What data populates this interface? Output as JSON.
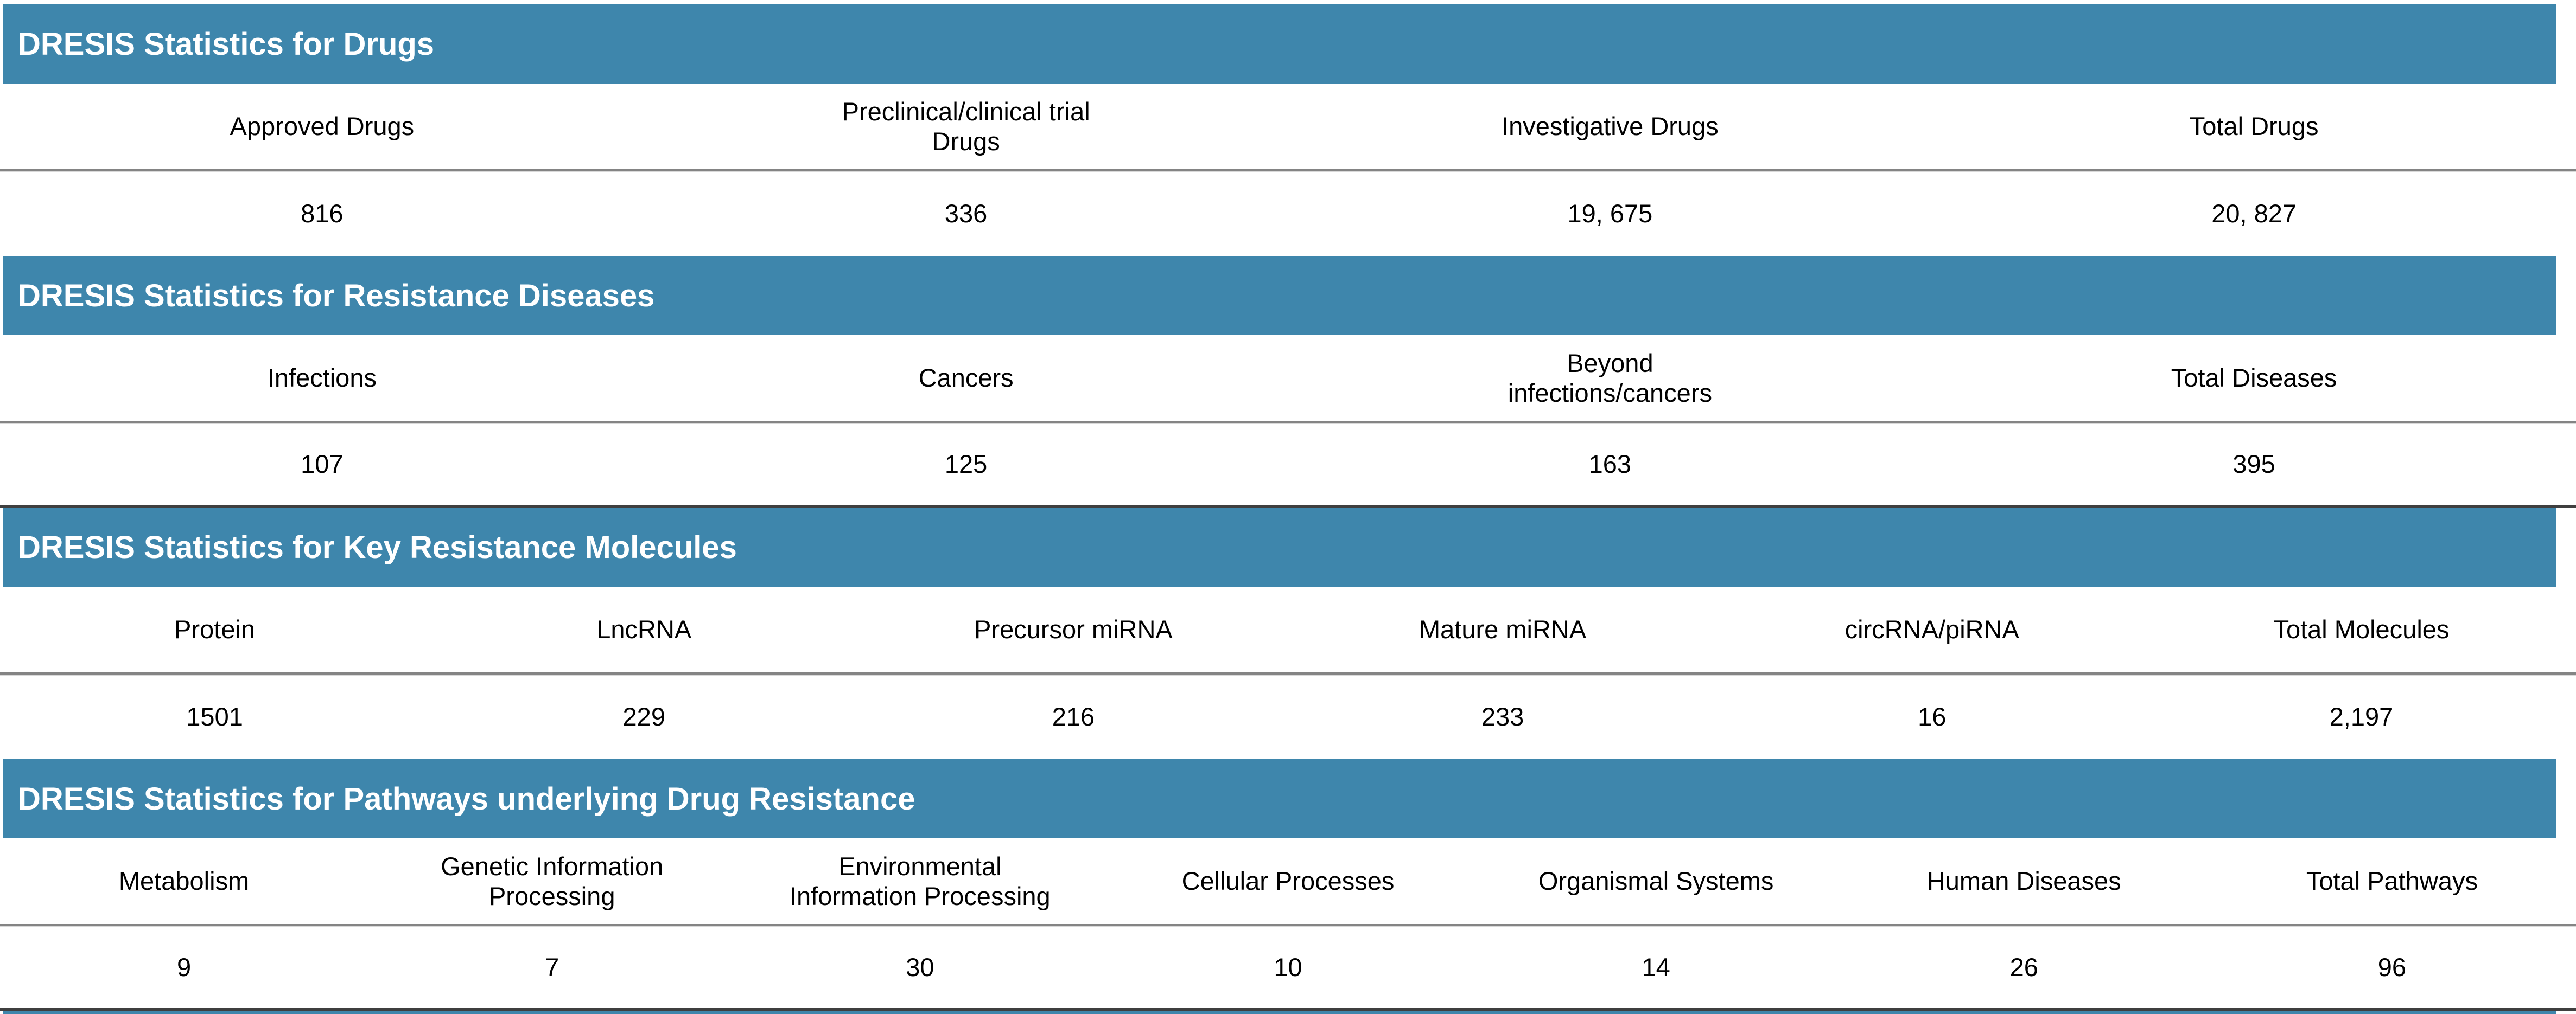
{
  "page_title": "DRESIS statistics tables",
  "theme": {
    "header_bar_color": "#3e86ac",
    "header_text_color": "#ffffff",
    "body_text_color": "#000000",
    "divider_color": "#848484",
    "strong_rule_color": "#3f3f3f"
  },
  "sections": [
    {
      "title": "DRESIS Statistics for Drugs",
      "columns": [
        "Approved Drugs",
        "Preclinical/clinical trial Drugs",
        "Investigative Drugs",
        "Total Drugs"
      ],
      "values": [
        "816",
        "336",
        "19, 675",
        "20, 827"
      ]
    },
    {
      "title": "DRESIS Statistics for Resistance Diseases",
      "columns": [
        "Infections",
        "Cancers",
        "Beyond infections/cancers",
        "Total Diseases"
      ],
      "values": [
        "107",
        "125",
        "163",
        "395"
      ]
    },
    {
      "title": "DRESIS Statistics for Key Resistance Molecules",
      "columns": [
        "Protein",
        "LncRNA",
        "Precursor miRNA",
        "Mature miRNA",
        "circRNA/piRNA",
        "Total Molecules"
      ],
      "values": [
        "1501",
        "229",
        "216",
        "233",
        "16",
        "2,197"
      ]
    },
    {
      "title": "DRESIS Statistics for Pathways underlying Drug Resistance",
      "columns": [
        "Metabolism",
        "Genetic Information Processing",
        "Environmental Information Processing",
        "Cellular Processes",
        "Organismal Systems",
        "Human Diseases",
        "Total Pathways"
      ],
      "values": [
        "9",
        "7",
        "30",
        "10",
        "14",
        "26",
        "96"
      ]
    }
  ],
  "chart_data": [
    {
      "type": "table",
      "title": "DRESIS Statistics for Drugs",
      "categories": [
        "Approved Drugs",
        "Preclinical/clinical trial Drugs",
        "Investigative Drugs",
        "Total Drugs"
      ],
      "values": [
        816,
        336,
        19675,
        20827
      ]
    },
    {
      "type": "table",
      "title": "DRESIS Statistics for Resistance Diseases",
      "categories": [
        "Infections",
        "Cancers",
        "Beyond infections/cancers",
        "Total Diseases"
      ],
      "values": [
        107,
        125,
        163,
        395
      ]
    },
    {
      "type": "table",
      "title": "DRESIS Statistics for Key Resistance Molecules",
      "categories": [
        "Protein",
        "LncRNA",
        "Precursor miRNA",
        "Mature miRNA",
        "circRNA/piRNA",
        "Total Molecules"
      ],
      "values": [
        1501,
        229,
        216,
        233,
        16,
        2197
      ]
    },
    {
      "type": "table",
      "title": "DRESIS Statistics for Pathways underlying Drug Resistance",
      "categories": [
        "Metabolism",
        "Genetic Information Processing",
        "Environmental Information Processing",
        "Cellular Processes",
        "Organismal Systems",
        "Human Diseases",
        "Total Pathways"
      ],
      "values": [
        9,
        7,
        30,
        10,
        14,
        26,
        96
      ]
    }
  ]
}
